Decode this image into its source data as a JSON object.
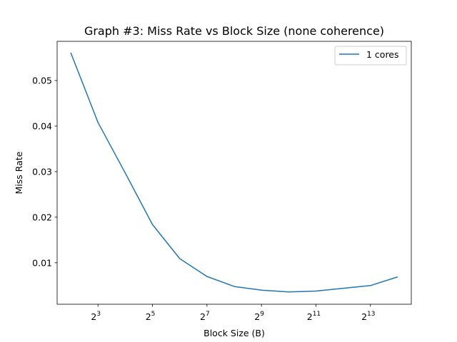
{
  "chart_data": {
    "type": "line",
    "title": "Graph #3: Miss Rate vs Block Size (none coherence)",
    "xlabel": "Block Size (B)",
    "ylabel": "Miss Rate",
    "x_scale": "log2",
    "x_tick_base": "2",
    "x_ticks": [
      3,
      5,
      7,
      9,
      11,
      13
    ],
    "y_ticks": [
      0.01,
      0.02,
      0.03,
      0.04,
      0.05
    ],
    "y_tick_labels": [
      "0.01",
      "0.02",
      "0.03",
      "0.04",
      "0.05"
    ],
    "xlim_exp": [
      1.5,
      14.5
    ],
    "ylim": [
      0.0009,
      0.0586
    ],
    "legend_position": "top-right",
    "series": [
      {
        "name": "1 cores",
        "color": "#1f77b4",
        "x": [
          4,
          8,
          16,
          32,
          64,
          128,
          256,
          512,
          1024,
          2048,
          4096,
          8192,
          16384
        ],
        "y": [
          0.0561,
          0.0408,
          0.0297,
          0.0184,
          0.0109,
          0.007,
          0.0048,
          0.004,
          0.0036,
          0.0038,
          0.0044,
          0.005,
          0.0069
        ]
      }
    ]
  }
}
